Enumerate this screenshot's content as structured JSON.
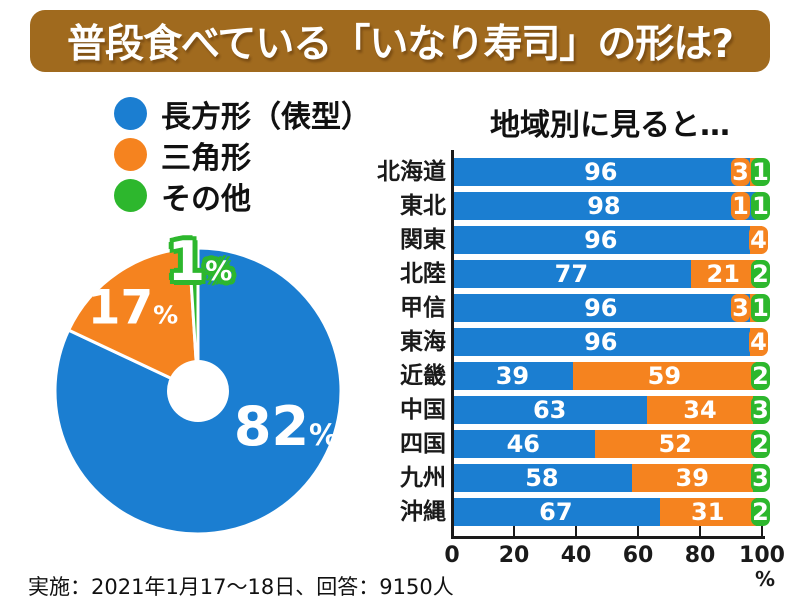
{
  "colors": {
    "blue": "#1b7ed1",
    "orange": "#f5831f",
    "green": "#2db72d",
    "banner": "#a06a1e",
    "ink": "#1a1a1a"
  },
  "banner": {
    "title": "普段食べている「いなり寿司」の形は?"
  },
  "legend": {
    "items": [
      {
        "label": "長方形（俵型）",
        "color": "#1b7ed1"
      },
      {
        "label": "三角形",
        "color": "#f5831f"
      },
      {
        "label": "その他",
        "color": "#2db72d"
      }
    ]
  },
  "footer": {
    "note": "実施：2021年1月17～18日、回答：9150人"
  },
  "chart_data": [
    {
      "type": "pie",
      "title": "普段食べている「いなり寿司」の形は?",
      "labels": [
        "長方形（俵型）",
        "三角形",
        "その他"
      ],
      "values": [
        82,
        17,
        1
      ],
      "unit": "%",
      "colors": [
        "#1b7ed1",
        "#f5831f",
        "#2db72d"
      ],
      "donut": true,
      "start": "top",
      "direction": "clockwise"
    },
    {
      "type": "bar",
      "subtype": "horizontal-stacked",
      "title": "地域別に見ると…",
      "categories": [
        "北海道",
        "東北",
        "関東",
        "北陸",
        "甲信",
        "東海",
        "近畿",
        "中国",
        "四国",
        "九州",
        "沖縄"
      ],
      "series": [
        {
          "name": "長方形（俵型）",
          "color": "#1b7ed1",
          "values": [
            96,
            98,
            96,
            77,
            96,
            96,
            39,
            63,
            46,
            58,
            67
          ]
        },
        {
          "name": "三角形",
          "color": "#f5831f",
          "values": [
            3,
            1,
            4,
            21,
            3,
            4,
            59,
            34,
            52,
            39,
            31
          ]
        },
        {
          "name": "その他",
          "color": "#2db72d",
          "values": [
            1,
            1,
            0,
            2,
            1,
            0,
            2,
            3,
            2,
            3,
            2
          ]
        }
      ],
      "xlim": [
        0,
        100
      ],
      "x_ticks": [
        0,
        20,
        40,
        60,
        80,
        100
      ],
      "x_unit": "%",
      "grid": false,
      "legend_position": "top-left"
    }
  ]
}
